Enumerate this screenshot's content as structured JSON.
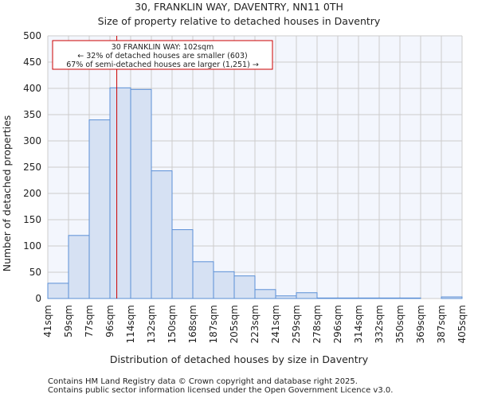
{
  "chart_data": {
    "type": "bar",
    "title": "30, FRANKLIN WAY, DAVENTRY, NN11 0TH",
    "subtitle": "Size of property relative to detached houses in Daventry",
    "xlabel": "Distribution of detached houses by size in Daventry",
    "ylabel": "Number of detached properties",
    "ylim": [
      0,
      500
    ],
    "yticks": [
      0,
      50,
      100,
      150,
      200,
      250,
      300,
      350,
      400,
      450,
      500
    ],
    "xticks": [
      "41sqm",
      "59sqm",
      "77sqm",
      "96sqm",
      "114sqm",
      "132sqm",
      "150sqm",
      "168sqm",
      "187sqm",
      "205sqm",
      "223sqm",
      "241sqm",
      "259sqm",
      "278sqm",
      "296sqm",
      "314sqm",
      "332sqm",
      "350sqm",
      "369sqm",
      "387sqm",
      "405sqm"
    ],
    "values": [
      29,
      120,
      340,
      401,
      398,
      243,
      131,
      70,
      51,
      43,
      17,
      5,
      11,
      1,
      1,
      1,
      1,
      1,
      0,
      3
    ],
    "grid": true,
    "marker": {
      "value_sqm": 102,
      "bin_position": 3.33
    },
    "annotation": [
      "30 FRANKLIN WAY: 102sqm",
      "← 32% of detached houses are smaller (603)",
      "67% of semi-detached houses are larger (1,251) →"
    ],
    "colors": {
      "bar": "#d6e1f3",
      "bar_edge": "#5b8fd6",
      "marker": "#cc0000",
      "plot_bg": "#f3f6fd",
      "grid": "#cccccc"
    }
  },
  "footer": [
    "Contains HM Land Registry data © Crown copyright and database right 2025.",
    "Contains public sector information licensed under the Open Government Licence v3.0."
  ]
}
